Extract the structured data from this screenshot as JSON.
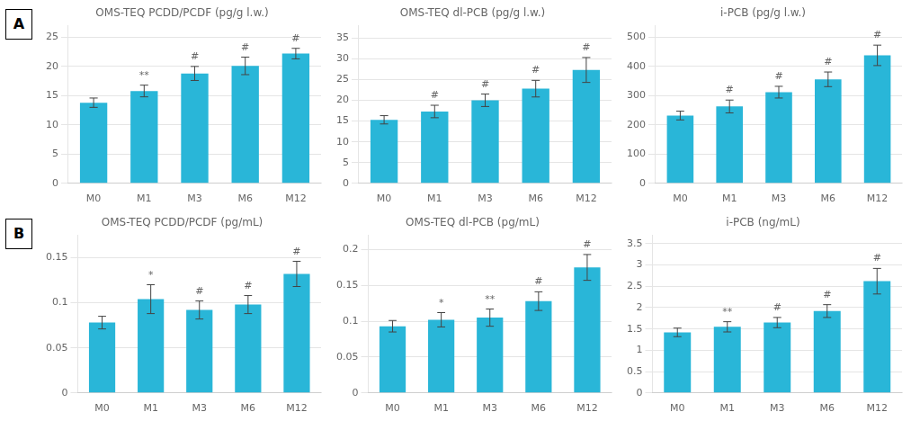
{
  "panel_labels": [
    "A",
    "B"
  ],
  "chart_data": [
    {
      "type": "bar",
      "title": "OMS-TEQ PCDD/PCDF (pg/g l.w.)",
      "categories": [
        "M0",
        "M1",
        "M3",
        "M6",
        "M12"
      ],
      "values": [
        13.8,
        15.8,
        18.8,
        20.1,
        22.2
      ],
      "errors": [
        0.8,
        1.0,
        1.2,
        1.5,
        0.9
      ],
      "annotations": [
        null,
        "**",
        "#",
        "#",
        "#"
      ],
      "color": "#29B6D8",
      "ylim": [
        0,
        27
      ],
      "yticks": [
        0,
        5,
        10,
        15,
        20,
        25
      ],
      "grid": true
    },
    {
      "type": "bar",
      "title": "OMS-TEQ dl-PCB (pg/g l.w.)",
      "categories": [
        "M0",
        "M1",
        "M3",
        "M6",
        "M12"
      ],
      "values": [
        15.3,
        17.3,
        20.0,
        22.8,
        27.3
      ],
      "errors": [
        1.0,
        1.5,
        1.5,
        2.0,
        3.0
      ],
      "annotations": [
        null,
        "#",
        "#",
        "#",
        "#"
      ],
      "color": "#29B6D8",
      "ylim": [
        0,
        38
      ],
      "yticks": [
        0,
        5,
        10,
        15,
        20,
        25,
        30,
        35
      ],
      "grid": true
    },
    {
      "type": "bar",
      "title": "i-PCB (pg/g l.w.)",
      "categories": [
        "M0",
        "M1",
        "M3",
        "M6",
        "M12"
      ],
      "values": [
        232,
        263,
        312,
        356,
        438
      ],
      "errors": [
        15,
        22,
        20,
        25,
        35
      ],
      "annotations": [
        null,
        "#",
        "#",
        "#",
        "#"
      ],
      "color": "#29B6D8",
      "ylim": [
        0,
        540
      ],
      "yticks": [
        0,
        100,
        200,
        300,
        400,
        500
      ],
      "grid": true
    },
    {
      "type": "bar",
      "title": "OMS-TEQ PCDD/PCDF (pg/mL)",
      "categories": [
        "M0",
        "M1",
        "M3",
        "M6",
        "M12"
      ],
      "values": [
        0.078,
        0.104,
        0.092,
        0.098,
        0.132
      ],
      "errors": [
        0.007,
        0.016,
        0.01,
        0.01,
        0.014
      ],
      "annotations": [
        null,
        "*",
        "#",
        "#",
        "#"
      ],
      "color": "#29B6D8",
      "ylim": [
        0,
        0.175
      ],
      "yticks": [
        0,
        0.05,
        0.1,
        0.15
      ],
      "grid": true
    },
    {
      "type": "bar",
      "title": "OMS-TEQ dl-PCB (pg/mL)",
      "categories": [
        "M0",
        "M1",
        "M3",
        "M6",
        "M12"
      ],
      "values": [
        0.093,
        0.102,
        0.105,
        0.128,
        0.175
      ],
      "errors": [
        0.008,
        0.01,
        0.012,
        0.013,
        0.018
      ],
      "annotations": [
        null,
        "*",
        "**",
        "#",
        "#"
      ],
      "color": "#29B6D8",
      "ylim": [
        0,
        0.22
      ],
      "yticks": [
        0,
        0.05,
        0.1,
        0.15,
        0.2
      ],
      "grid": true
    },
    {
      "type": "bar",
      "title": "i-PCB (ng/mL)",
      "categories": [
        "M0",
        "M1",
        "M3",
        "M6",
        "M12"
      ],
      "values": [
        1.42,
        1.55,
        1.65,
        1.92,
        2.62
      ],
      "errors": [
        0.1,
        0.12,
        0.12,
        0.15,
        0.3
      ],
      "annotations": [
        null,
        "**",
        "#",
        "#",
        "#"
      ],
      "color": "#29B6D8",
      "ylim": [
        0,
        3.7
      ],
      "yticks": [
        0,
        0.5,
        1,
        1.5,
        2,
        2.5,
        3,
        3.5
      ],
      "grid": true
    }
  ]
}
